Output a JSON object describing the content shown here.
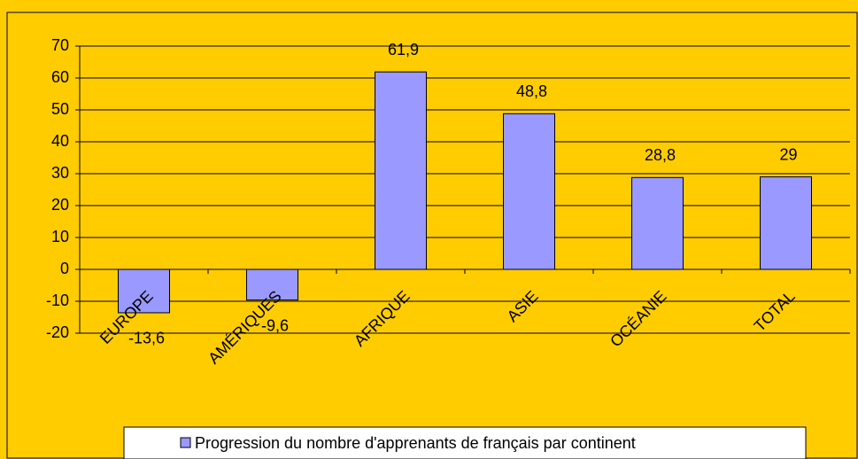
{
  "chart_data": {
    "type": "bar",
    "categories": [
      "EUROPE",
      "AMÉRIQUES",
      "AFRIQUE",
      "ASIE",
      "OCÉANIE",
      "TOTAL"
    ],
    "series": [
      {
        "name": "Progression du nombre d'apprenants de français par continent",
        "color": "#9999ff",
        "values": [
          -13.6,
          -9.6,
          61.9,
          48.8,
          28.8,
          29
        ],
        "value_labels": [
          "-13,6",
          "-9,6",
          "61,9",
          "48,8",
          "28,8",
          "29"
        ]
      }
    ],
    "ylim": [
      -20,
      70
    ],
    "yticks": [
      -20,
      -10,
      0,
      10,
      20,
      30,
      40,
      50,
      60,
      70
    ],
    "grid": true,
    "legend": "bottom"
  }
}
